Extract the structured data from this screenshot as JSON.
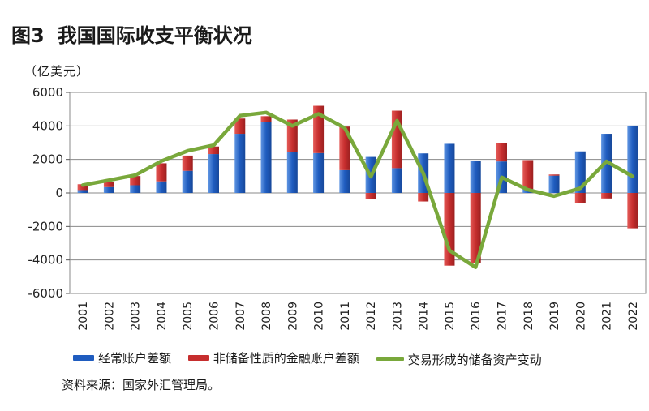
{
  "title": {
    "number": "图3",
    "text": "我国国际收支平衡状况"
  },
  "unit": "（亿美元）",
  "source": "资料来源：国家外汇管理局。",
  "colors": {
    "current": "#1f5cbf",
    "current_light": "#5f95e2",
    "financial": "#c62e2e",
    "financial_light": "#e45a57",
    "reserve": "#79a83b",
    "grid": "#8a8a8a",
    "bg": "#ffffff"
  },
  "chart_data": {
    "type": "bar",
    "categories": [
      "2001",
      "2002",
      "2003",
      "2004",
      "2005",
      "2006",
      "2007",
      "2008",
      "2009",
      "2010",
      "2011",
      "2012",
      "2013",
      "2014",
      "2015",
      "2016",
      "2017",
      "2018",
      "2019",
      "2020",
      "2021",
      "2022"
    ],
    "series": [
      {
        "name": "经常账户差额",
        "type": "bar",
        "values": [
          170,
          350,
          460,
          690,
          1320,
          2320,
          3530,
          4210,
          2430,
          2380,
          1360,
          2150,
          1480,
          2360,
          2930,
          1910,
          1880,
          240,
          1030,
          2480,
          3530,
          4020
        ]
      },
      {
        "name": "非储备性质的金融账户差额",
        "type": "bar",
        "values": [
          350,
          320,
          550,
          1080,
          910,
          450,
          910,
          370,
          1950,
          2820,
          2600,
          -360,
          3430,
          -510,
          -4340,
          -4160,
          1100,
          1720,
          70,
          -610,
          -330,
          -2110
        ]
      },
      {
        "name": "交易形成的储备资产变动",
        "type": "line",
        "values": [
          470,
          760,
          1060,
          1900,
          2510,
          2850,
          4610,
          4800,
          4000,
          4720,
          3880,
          970,
          4310,
          1180,
          -3430,
          -4440,
          930,
          190,
          -190,
          280,
          1880,
          980
        ]
      }
    ],
    "ylim": [
      -6000,
      6000
    ],
    "yticks": [
      "-6000",
      "-4000",
      "-2000",
      "0",
      "2000",
      "4000",
      "6000"
    ],
    "grid": true,
    "legend_position": "bottom"
  }
}
